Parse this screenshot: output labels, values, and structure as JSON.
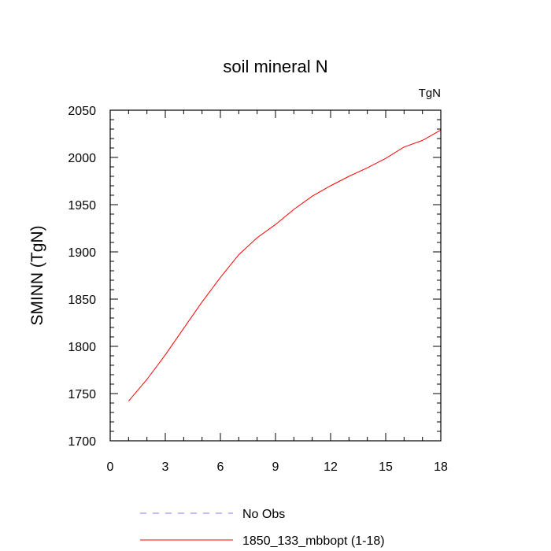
{
  "chart_data": {
    "type": "line",
    "title": "soil mineral N",
    "units_label": "TgN",
    "xlabel": "",
    "ylabel": "SMINN  (TgN)",
    "xlim": [
      0,
      18
    ],
    "ylim": [
      1700,
      2050
    ],
    "x_ticks": [
      0,
      3,
      6,
      9,
      12,
      15,
      18
    ],
    "x_tick_labels": [
      "0",
      "3",
      "6",
      "9",
      "12",
      "15",
      "18"
    ],
    "y_ticks": [
      1700,
      1750,
      1800,
      1850,
      1900,
      1950,
      2000,
      2050
    ],
    "y_tick_labels": [
      "1700",
      "1750",
      "1800",
      "1850",
      "1900",
      "1950",
      "2000",
      "2050"
    ],
    "grid": false,
    "legend_position": "bottom",
    "series": [
      {
        "name": "No Obs",
        "color": "#8080ff",
        "line_style": "dashed",
        "x": [],
        "y": []
      },
      {
        "name": "1850_133_mbbopt (1-18)",
        "color": "#ff0000",
        "line_style": "solid",
        "x": [
          1,
          2,
          3,
          4,
          5,
          6,
          7,
          8,
          9,
          10,
          11,
          12,
          13,
          14,
          15,
          16,
          17,
          18
        ],
        "y": [
          1742,
          1765,
          1791,
          1819,
          1847,
          1873,
          1897,
          1915,
          1929,
          1945,
          1959,
          1970,
          1980,
          1989,
          1999,
          2011,
          2018,
          2029
        ]
      }
    ]
  }
}
